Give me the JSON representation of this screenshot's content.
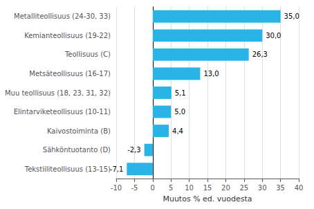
{
  "chart_data": {
    "type": "bar",
    "orientation": "horizontal",
    "categories": [
      "Tekstiiliteollisuus (13-15)",
      "Sähköntuotanto (D)",
      "Kaivostoiminta (B)",
      "Elintarviketeollisuus (10-11)",
      "Muu teollisuus (18, 23, 31, 32)",
      "Metsäteollisuus (16-17)",
      "Teollisuus (C)",
      "Kemianteollisuus (19-22)",
      "Metalliteollisuus (24-30, 33)"
    ],
    "values": [
      -7.1,
      -2.3,
      4.4,
      5.0,
      5.1,
      13.0,
      26.3,
      30.0,
      35.0
    ],
    "value_labels": [
      "-7,1",
      "-2,3",
      "4,4",
      "5,0",
      "5,1",
      "13,0",
      "26,3",
      "30,0",
      "35,0"
    ],
    "data_labels": true,
    "color": "#29b4e8",
    "xlabel": "Muutos % ed. vuodesta",
    "xlim": [
      -10,
      40
    ],
    "xticks": [
      -10,
      -5,
      0,
      5,
      10,
      15,
      20,
      25,
      30,
      35,
      40
    ],
    "grid": true
  }
}
